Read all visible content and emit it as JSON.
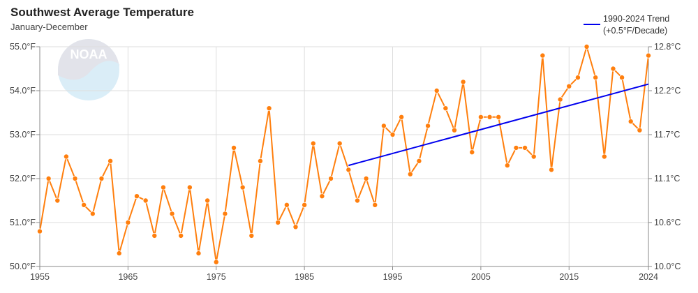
{
  "chart_data": {
    "type": "line",
    "title": "Southwest Average Temperature",
    "subtitle": "January-December",
    "x": [
      1955,
      1956,
      1957,
      1958,
      1959,
      1960,
      1961,
      1962,
      1963,
      1964,
      1965,
      1966,
      1967,
      1968,
      1969,
      1970,
      1971,
      1972,
      1973,
      1974,
      1975,
      1976,
      1977,
      1978,
      1979,
      1980,
      1981,
      1982,
      1983,
      1984,
      1985,
      1986,
      1987,
      1988,
      1989,
      1990,
      1991,
      1992,
      1993,
      1994,
      1995,
      1996,
      1997,
      1998,
      1999,
      2000,
      2001,
      2002,
      2003,
      2004,
      2005,
      2006,
      2007,
      2008,
      2009,
      2010,
      2011,
      2012,
      2013,
      2014,
      2015,
      2016,
      2017,
      2018,
      2019,
      2020,
      2021,
      2022,
      2023,
      2024
    ],
    "series": [
      {
        "values": [
          50.8,
          52.0,
          51.5,
          52.5,
          52.0,
          51.4,
          51.2,
          52.0,
          52.4,
          50.3,
          51.0,
          51.6,
          51.5,
          50.7,
          51.8,
          51.2,
          50.7,
          51.8,
          50.3,
          51.5,
          50.1,
          51.2,
          52.7,
          51.8,
          50.7,
          52.4,
          53.6,
          51.0,
          51.4,
          50.9,
          51.4,
          52.8,
          51.6,
          52.0,
          52.8,
          52.2,
          51.5,
          52.0,
          51.4,
          53.2,
          53.0,
          53.4,
          52.1,
          52.4,
          53.2,
          54.0,
          53.6,
          53.1,
          54.2,
          52.6,
          53.4,
          53.4,
          53.4,
          52.3,
          52.7,
          52.7,
          52.5,
          54.8,
          52.2,
          53.8,
          54.1,
          54.3,
          55.0,
          54.3,
          52.5,
          54.5,
          54.3,
          53.3,
          53.1,
          54.8
        ],
        "color": "#ff7f0e"
      },
      {
        "name": "1990-2024 Trend",
        "name_line2": "(+0.5°F/Decade)",
        "x": [
          1990,
          2024
        ],
        "values": [
          52.3,
          54.15
        ],
        "color": "#0000ee"
      }
    ],
    "xlim": [
      1955,
      2024
    ],
    "ylim": [
      50,
      55
    ],
    "x_ticks": [
      "1955",
      "1965",
      "1975",
      "1985",
      "1995",
      "2005",
      "2015",
      "2024"
    ],
    "y_ticks_left": [
      "50.0°F",
      "51.0°F",
      "52.0°F",
      "53.0°F",
      "54.0°F",
      "55.0°F"
    ],
    "y_ticks_right": [
      "10.0°C",
      "10.6°C",
      "11.1°C",
      "11.7°C",
      "12.2°C",
      "12.8°C"
    ],
    "grid": true,
    "legend_position": "top-right",
    "logo_text": "NOAA"
  }
}
